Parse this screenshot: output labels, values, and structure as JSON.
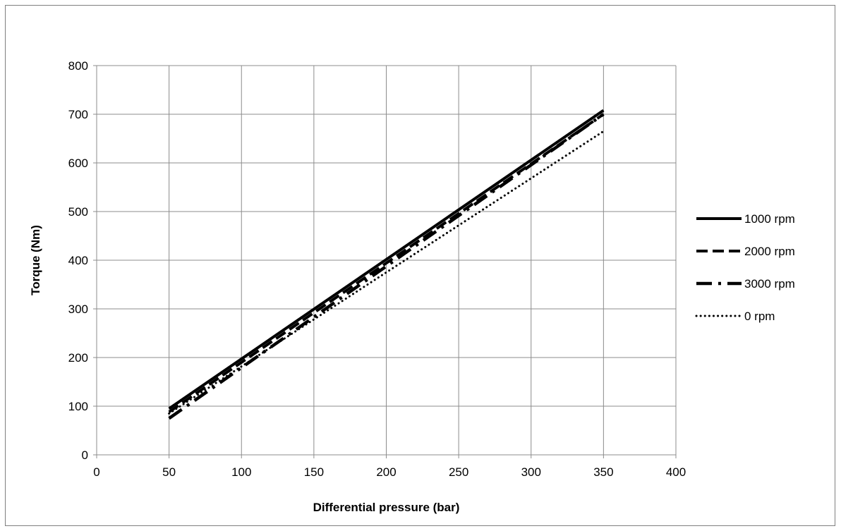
{
  "chart_data": {
    "type": "line",
    "title": "",
    "xlabel": "Differential pressure (bar)",
    "ylabel": "Torque (Nm)",
    "xlim": [
      0,
      400
    ],
    "ylim": [
      0,
      800
    ],
    "xticks": [
      0,
      50,
      100,
      150,
      200,
      250,
      300,
      350,
      400
    ],
    "yticks": [
      0,
      100,
      200,
      300,
      400,
      500,
      600,
      700,
      800
    ],
    "grid": true,
    "legend_position": "right",
    "series": [
      {
        "name": "1000 rpm",
        "style": "solid",
        "color": "#000000",
        "x": [
          50,
          350
        ],
        "y": [
          95,
          708
        ]
      },
      {
        "name": "2000 rpm",
        "style": "dashed",
        "color": "#000000",
        "x": [
          50,
          350
        ],
        "y": [
          88,
          700
        ]
      },
      {
        "name": "3000 rpm",
        "style": "dash-dot",
        "color": "#000000",
        "x": [
          50,
          350
        ],
        "y": [
          75,
          700
        ]
      },
      {
        "name": "0 rpm",
        "style": "dotted",
        "color": "#000000",
        "x": [
          50,
          350
        ],
        "y": [
          85,
          665
        ]
      }
    ]
  }
}
